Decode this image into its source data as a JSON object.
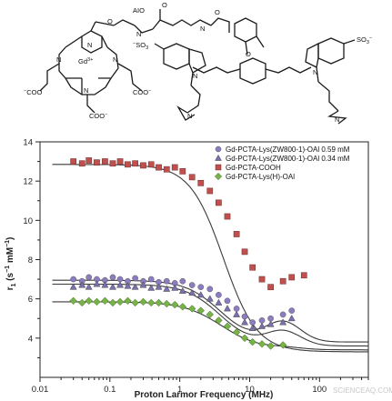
{
  "structure": {
    "labels": {
      "aio": "AIO",
      "o_link": "O",
      "o_amide_top": "O",
      "o_amide_right": "O",
      "nh_left": "N",
      "nh_right": "N",
      "gd": "Gd",
      "gd_charge": "3+",
      "n1": "N",
      "n2": "N",
      "n3": "N",
      "n_pyridine": "N",
      "coo1": "COO",
      "coo2": "COO",
      "coo3": "COO",
      "so3_left": "SO",
      "so3_right": "SO",
      "n_indole_left": "N",
      "n_indole_right": "N",
      "o_ether": "O",
      "nme3_left": "N",
      "nme3_right": "N"
    }
  },
  "chart_data": {
    "type": "scatter",
    "xscale": "log",
    "xlim": [
      0.01,
      500
    ],
    "ylim": [
      2,
      14
    ],
    "xticks": [
      0.01,
      0.1,
      1,
      10,
      100
    ],
    "xtick_labels": [
      "0.01",
      "0.1",
      "1",
      "10",
      "100"
    ],
    "yticks": [
      4,
      6,
      8,
      10,
      12,
      14
    ],
    "ytick_labels": [
      "4",
      "6",
      "8",
      "10",
      "12",
      "14"
    ],
    "xlabel": "Proton Larmor Frequency (MHz)",
    "ylabel_main": "r",
    "ylabel_sub": "1",
    "ylabel_units": "(s",
    "ylabel_exp1": "−1",
    "ylabel_mid": " mM",
    "ylabel_exp2": "−1",
    "ylabel_end": ")",
    "legend_position": "top-right",
    "series": [
      {
        "name": "Gd-PCTA-Lys(ZW800-1)-OAl 0.59 mM",
        "marker": "circle",
        "color": "#8e7cc3",
        "x": [
          0.03,
          0.04,
          0.05,
          0.065,
          0.085,
          0.11,
          0.14,
          0.18,
          0.23,
          0.3,
          0.39,
          0.5,
          0.65,
          0.85,
          1.1,
          1.5,
          2.0,
          2.7,
          3.6,
          4.8,
          6.5,
          8.5,
          11,
          15,
          20,
          30,
          40
        ],
        "y": [
          7.0,
          6.9,
          7.1,
          7.0,
          6.95,
          7.1,
          7.0,
          6.9,
          7.05,
          6.9,
          7.0,
          6.85,
          6.9,
          6.8,
          6.9,
          6.7,
          6.6,
          6.5,
          6.2,
          5.9,
          5.5,
          5.1,
          4.8,
          4.9,
          5.0,
          5.2,
          5.4
        ]
      },
      {
        "name": "Gd-PCTA-Lys(ZW800-1)-OAl 0.34 mM",
        "marker": "triangle",
        "color": "#7b6fb0",
        "x": [
          0.03,
          0.04,
          0.05,
          0.065,
          0.085,
          0.11,
          0.14,
          0.18,
          0.23,
          0.3,
          0.39,
          0.5,
          0.65,
          0.85,
          1.1,
          1.5,
          2.0,
          2.7,
          3.6,
          4.8,
          6.5,
          8.5,
          11,
          15,
          20,
          30,
          40
        ],
        "y": [
          6.6,
          6.7,
          6.6,
          6.75,
          6.7,
          6.6,
          6.7,
          6.65,
          6.6,
          6.7,
          6.55,
          6.6,
          6.5,
          6.55,
          6.4,
          6.3,
          6.2,
          6.0,
          5.8,
          5.5,
          5.2,
          4.8,
          4.5,
          4.6,
          4.7,
          4.8,
          5.0
        ]
      },
      {
        "name": "Gd-PCTA-COOH",
        "marker": "square",
        "color": "#c0504d",
        "x": [
          0.03,
          0.04,
          0.05,
          0.065,
          0.085,
          0.11,
          0.14,
          0.18,
          0.23,
          0.3,
          0.39,
          0.5,
          0.65,
          0.85,
          1.1,
          1.5,
          2.0,
          2.7,
          3.6,
          4.8,
          6.5,
          8.5,
          11,
          15,
          20,
          30,
          40,
          60
        ],
        "y": [
          13.0,
          12.9,
          13.05,
          12.95,
          13.0,
          12.9,
          13.0,
          12.85,
          12.9,
          12.8,
          12.85,
          12.7,
          12.6,
          12.7,
          12.5,
          12.2,
          11.9,
          11.5,
          10.9,
          10.2,
          9.3,
          8.4,
          7.6,
          7.0,
          6.6,
          6.9,
          7.1,
          7.2
        ]
      },
      {
        "name": "Gd-PCTA-Lys(H)-OAl",
        "marker": "diamond",
        "color": "#77b347",
        "x": [
          0.03,
          0.04,
          0.05,
          0.065,
          0.085,
          0.11,
          0.14,
          0.18,
          0.23,
          0.3,
          0.39,
          0.5,
          0.65,
          0.85,
          1.1,
          1.5,
          2.0,
          2.7,
          3.6,
          4.8,
          6.5,
          8.5,
          11,
          15,
          20,
          30
        ],
        "y": [
          5.9,
          5.8,
          5.9,
          5.85,
          5.9,
          5.8,
          5.85,
          5.9,
          5.8,
          5.85,
          5.8,
          5.8,
          5.75,
          5.7,
          5.6,
          5.5,
          5.4,
          5.2,
          4.9,
          4.6,
          4.3,
          4.0,
          3.8,
          3.7,
          3.6,
          3.65
        ]
      }
    ],
    "fit_curves": [
      {
        "y_low": 12.85,
        "y_high": 3.3,
        "y_bump": 0,
        "x_mid": 4.2,
        "width": 0.48
      },
      {
        "y_low": 6.95,
        "y_high": 3.8,
        "y_bump": 2.2,
        "x_mid": 3.8,
        "width": 0.5
      },
      {
        "y_low": 6.75,
        "y_high": 3.6,
        "y_bump": 1.6,
        "x_mid": 3.8,
        "width": 0.5
      },
      {
        "y_low": 5.85,
        "y_high": 3.4,
        "y_bump": 0.2,
        "x_mid": 4.0,
        "width": 0.55
      }
    ]
  },
  "watermark": "SCIENCEAQ.COM"
}
